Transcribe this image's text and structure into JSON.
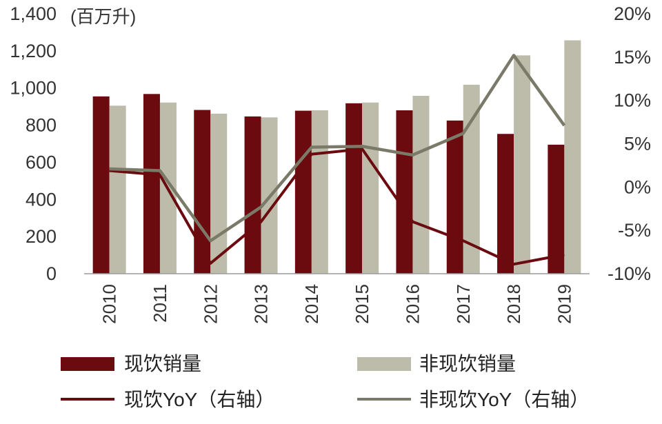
{
  "chart_data": {
    "type": "bar",
    "left_axis_unit": "(百万升)",
    "categories": [
      "2010",
      "2011",
      "2012",
      "2013",
      "2014",
      "2015",
      "2016",
      "2017",
      "2018",
      "2019"
    ],
    "series": [
      {
        "name": "现饮销量",
        "kind": "bar",
        "axis": "left",
        "color": "#6b0a0f",
        "values": [
          955,
          968,
          882,
          847,
          878,
          918,
          880,
          825,
          753,
          695
        ]
      },
      {
        "name": "非现饮销量",
        "kind": "bar",
        "axis": "left",
        "color": "#bdbbaa",
        "values": [
          905,
          922,
          862,
          842,
          880,
          922,
          958,
          1018,
          1176,
          1257
        ]
      },
      {
        "name": "现饮YoY（右轴）",
        "kind": "line",
        "axis": "right",
        "color": "#6b0a0f",
        "values": [
          1.9,
          1.4,
          -8.8,
          -4.0,
          3.8,
          4.4,
          -4.0,
          -6.2,
          -8.9,
          -7.8
        ]
      },
      {
        "name": "非现饮YoY（右轴）",
        "kind": "line",
        "axis": "right",
        "color": "#7b7a69",
        "values": [
          2.1,
          1.9,
          -6.2,
          -2.3,
          4.6,
          4.7,
          3.7,
          6.2,
          15.2,
          7.1
        ]
      }
    ],
    "left_axis": {
      "min": 0,
      "max": 1400,
      "step": 200,
      "tick_labels": [
        "0",
        "200",
        "400",
        "600",
        "800",
        "1,000",
        "1,200",
        "1,400"
      ]
    },
    "right_axis": {
      "min": -10,
      "max": 20,
      "step": 5,
      "tick_labels": [
        "-10%",
        "-5%",
        "0%",
        "5%",
        "10%",
        "15%",
        "20%"
      ]
    },
    "grid": false,
    "legend_position": "bottom"
  }
}
